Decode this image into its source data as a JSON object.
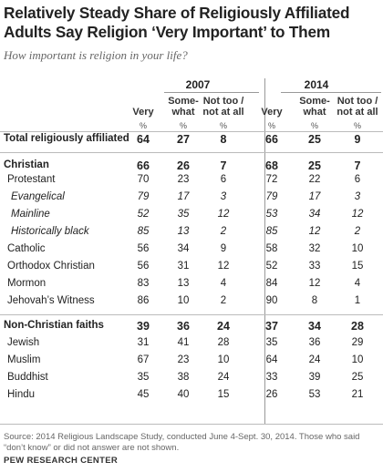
{
  "chart_data": {
    "type": "table",
    "title": "Relatively Steady Share of Religiously Affiliated Adults Say Religion ‘Very Important’ to Them",
    "subtitle": "How important is religion in your life?",
    "years": [
      "2007",
      "2014"
    ],
    "columns": [
      "Very",
      "Some-\nwhat",
      "Not too /\nnot at all"
    ],
    "unit": "%",
    "rows": [
      {
        "label": "Total religiously affiliated",
        "style": "total",
        "y2007": [
          64,
          27,
          8
        ],
        "y2014": [
          66,
          25,
          9
        ]
      },
      {
        "label": "Christian",
        "style": "group",
        "y2007": [
          66,
          26,
          7
        ],
        "y2014": [
          68,
          25,
          7
        ]
      },
      {
        "label": "Protestant",
        "style": "sub",
        "y2007": [
          70,
          23,
          6
        ],
        "y2014": [
          72,
          22,
          6
        ]
      },
      {
        "label": "Evangelical",
        "style": "subsub",
        "y2007": [
          79,
          17,
          3
        ],
        "y2014": [
          79,
          17,
          3
        ]
      },
      {
        "label": "Mainline",
        "style": "subsub",
        "y2007": [
          52,
          35,
          12
        ],
        "y2014": [
          53,
          34,
          12
        ]
      },
      {
        "label": "Historically black",
        "style": "subsub",
        "y2007": [
          85,
          13,
          2
        ],
        "y2014": [
          85,
          12,
          2
        ]
      },
      {
        "label": "Catholic",
        "style": "sub",
        "y2007": [
          56,
          34,
          9
        ],
        "y2014": [
          58,
          32,
          10
        ]
      },
      {
        "label": "Orthodox Christian",
        "style": "sub",
        "y2007": [
          56,
          31,
          12
        ],
        "y2014": [
          52,
          33,
          15
        ]
      },
      {
        "label": "Mormon",
        "style": "sub",
        "y2007": [
          83,
          13,
          4
        ],
        "y2014": [
          84,
          12,
          4
        ]
      },
      {
        "label": "Jehovah’s Witness",
        "style": "sub",
        "y2007": [
          86,
          10,
          2
        ],
        "y2014": [
          90,
          8,
          1
        ]
      },
      {
        "label": "Non-Christian faiths",
        "style": "group",
        "y2007": [
          39,
          36,
          24
        ],
        "y2014": [
          37,
          34,
          28
        ]
      },
      {
        "label": "Jewish",
        "style": "sub",
        "y2007": [
          31,
          41,
          28
        ],
        "y2014": [
          35,
          36,
          29
        ]
      },
      {
        "label": "Muslim",
        "style": "sub",
        "y2007": [
          67,
          23,
          10
        ],
        "y2014": [
          64,
          24,
          10
        ]
      },
      {
        "label": "Buddhist",
        "style": "sub",
        "y2007": [
          35,
          38,
          24
        ],
        "y2014": [
          33,
          39,
          25
        ]
      },
      {
        "label": "Hindu",
        "style": "sub",
        "y2007": [
          45,
          40,
          15
        ],
        "y2014": [
          26,
          53,
          21
        ]
      }
    ],
    "source": "Source: 2014 Religious Landscape Study, conducted June 4-Sept. 30, 2014. Those who said “don’t know” or did not answer are not shown.",
    "brand": "PEW RESEARCH CENTER"
  }
}
